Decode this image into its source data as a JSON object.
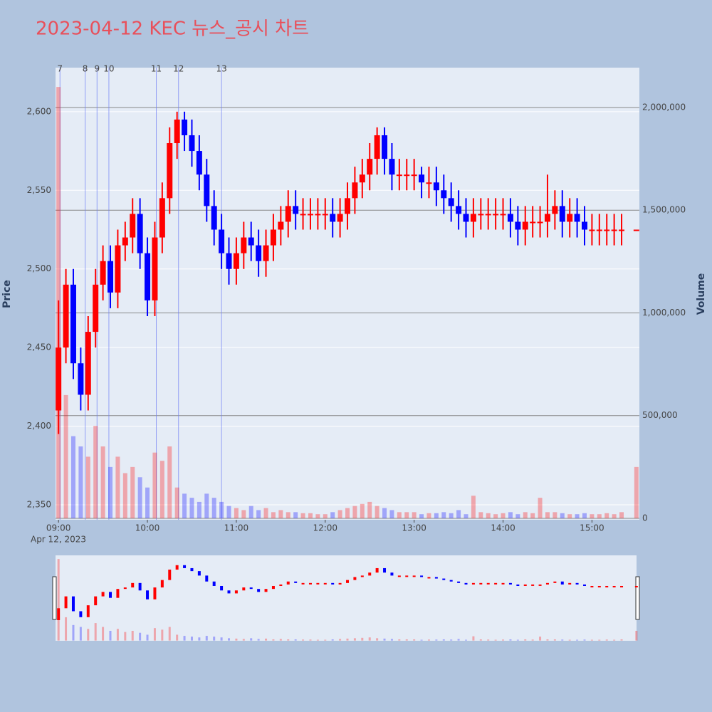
{
  "chart_data": {
    "type": "candlestick",
    "title": "2023-04-12 KEC 뉴스_공시 차트",
    "y_label": "Price",
    "y2_label": "Volume",
    "date_label": "Apr 12, 2023",
    "up_color": "#ff0000",
    "down_color": "#0000ff",
    "x": [
      "09:00",
      "09:05",
      "09:10",
      "09:15",
      "09:20",
      "09:25",
      "09:30",
      "09:35",
      "09:40",
      "09:45",
      "09:50",
      "09:55",
      "10:00",
      "10:05",
      "10:10",
      "10:15",
      "10:20",
      "10:25",
      "10:30",
      "10:35",
      "10:40",
      "10:45",
      "10:50",
      "10:55",
      "11:00",
      "11:05",
      "11:10",
      "11:15",
      "11:20",
      "11:25",
      "11:30",
      "11:35",
      "11:40",
      "11:45",
      "11:50",
      "11:55",
      "12:00",
      "12:05",
      "12:10",
      "12:15",
      "12:20",
      "12:25",
      "12:30",
      "12:35",
      "12:40",
      "12:45",
      "12:50",
      "12:55",
      "13:00",
      "13:05",
      "13:10",
      "13:15",
      "13:20",
      "13:25",
      "13:30",
      "13:35",
      "13:40",
      "13:45",
      "13:50",
      "13:55",
      "14:00",
      "14:05",
      "14:10",
      "14:15",
      "14:20",
      "14:25",
      "14:30",
      "14:35",
      "14:40",
      "14:45",
      "14:50",
      "14:55",
      "15:00",
      "15:05",
      "15:10",
      "15:15",
      "15:20",
      "15:30"
    ],
    "open": [
      2410,
      2450,
      2490,
      2440,
      2420,
      2460,
      2490,
      2505,
      2485,
      2515,
      2520,
      2535,
      2510,
      2480,
      2520,
      2545,
      2580,
      2595,
      2585,
      2575,
      2560,
      2540,
      2525,
      2510,
      2500,
      2510,
      2520,
      2515,
      2505,
      2515,
      2525,
      2530,
      2540,
      2535,
      2535,
      2535,
      2535,
      2535,
      2530,
      2535,
      2545,
      2555,
      2560,
      2570,
      2585,
      2570,
      2560,
      2560,
      2560,
      2560,
      2555,
      2555,
      2550,
      2545,
      2540,
      2535,
      2530,
      2535,
      2535,
      2535,
      2535,
      2535,
      2530,
      2525,
      2530,
      2530,
      2530,
      2535,
      2540,
      2530,
      2535,
      2530,
      2525,
      2525,
      2525,
      2525,
      2525,
      2525
    ],
    "high": [
      2480,
      2500,
      2500,
      2450,
      2470,
      2500,
      2515,
      2515,
      2525,
      2530,
      2545,
      2545,
      2520,
      2530,
      2555,
      2590,
      2600,
      2600,
      2595,
      2585,
      2570,
      2550,
      2535,
      2520,
      2520,
      2530,
      2530,
      2525,
      2525,
      2535,
      2540,
      2550,
      2550,
      2545,
      2545,
      2545,
      2545,
      2545,
      2545,
      2555,
      2565,
      2570,
      2580,
      2590,
      2590,
      2580,
      2570,
      2570,
      2570,
      2565,
      2565,
      2565,
      2560,
      2555,
      2550,
      2545,
      2545,
      2545,
      2545,
      2545,
      2545,
      2545,
      2540,
      2540,
      2540,
      2540,
      2560,
      2550,
      2550,
      2545,
      2545,
      2540,
      2535,
      2535,
      2535,
      2535,
      2535,
      2525
    ],
    "low": [
      2395,
      2440,
      2430,
      2410,
      2410,
      2450,
      2480,
      2475,
      2475,
      2505,
      2510,
      2500,
      2470,
      2470,
      2510,
      2535,
      2570,
      2575,
      2565,
      2550,
      2530,
      2515,
      2500,
      2490,
      2490,
      2500,
      2505,
      2495,
      2495,
      2505,
      2515,
      2520,
      2525,
      2525,
      2525,
      2525,
      2525,
      2520,
      2520,
      2525,
      2535,
      2545,
      2550,
      2560,
      2560,
      2550,
      2550,
      2550,
      2550,
      2545,
      2545,
      2540,
      2535,
      2530,
      2525,
      2520,
      2520,
      2525,
      2525,
      2525,
      2525,
      2520,
      2515,
      2515,
      2520,
      2520,
      2520,
      2525,
      2520,
      2520,
      2520,
      2515,
      2515,
      2515,
      2515,
      2515,
      2515,
      2525
    ],
    "close": [
      2450,
      2490,
      2440,
      2420,
      2460,
      2490,
      2505,
      2485,
      2515,
      2520,
      2535,
      2510,
      2480,
      2520,
      2545,
      2580,
      2595,
      2585,
      2575,
      2560,
      2540,
      2525,
      2510,
      2500,
      2510,
      2520,
      2515,
      2505,
      2515,
      2525,
      2530,
      2540,
      2535,
      2535,
      2535,
      2535,
      2535,
      2530,
      2535,
      2545,
      2555,
      2560,
      2570,
      2585,
      2570,
      2560,
      2560,
      2560,
      2560,
      2555,
      2555,
      2550,
      2545,
      2540,
      2535,
      2530,
      2535,
      2535,
      2535,
      2535,
      2535,
      2530,
      2525,
      2530,
      2530,
      2530,
      2535,
      2540,
      2530,
      2535,
      2530,
      2525,
      2525,
      2525,
      2525,
      2525,
      2525,
      2525
    ],
    "volume": [
      2100000,
      600000,
      400000,
      350000,
      300000,
      450000,
      350000,
      250000,
      300000,
      220000,
      250000,
      200000,
      150000,
      320000,
      280000,
      350000,
      150000,
      120000,
      100000,
      80000,
      120000,
      100000,
      80000,
      60000,
      50000,
      40000,
      60000,
      40000,
      50000,
      30000,
      40000,
      30000,
      30000,
      25000,
      25000,
      20000,
      20000,
      30000,
      40000,
      50000,
      60000,
      70000,
      80000,
      60000,
      50000,
      40000,
      30000,
      30000,
      30000,
      20000,
      25000,
      25000,
      30000,
      25000,
      40000,
      20000,
      110000,
      30000,
      25000,
      20000,
      25000,
      30000,
      20000,
      30000,
      25000,
      100000,
      30000,
      30000,
      25000,
      20000,
      20000,
      25000,
      20000,
      20000,
      25000,
      20000,
      30000,
      250000
    ],
    "xlim": [
      "08:58",
      "15:32"
    ],
    "xticks": [
      "09:00",
      "10:00",
      "11:00",
      "12:00",
      "13:00",
      "14:00",
      "15:00"
    ],
    "ylim": [
      2340.5,
      2628
    ],
    "yticks": [
      {
        "value": 2350,
        "label": "2,350"
      },
      {
        "value": 2400,
        "label": "2,400"
      },
      {
        "value": 2450,
        "label": "2,450"
      },
      {
        "value": 2500,
        "label": "2,500"
      },
      {
        "value": 2550,
        "label": "2,550"
      },
      {
        "value": 2600,
        "label": "2,600"
      }
    ],
    "y2lim": [
      -7000,
      2194000
    ],
    "y2ticks": [
      0,
      {
        "value": 500000,
        "label": "500,000"
      },
      {
        "value": 1000000,
        "label": "1,000,000"
      },
      {
        "value": 1500000,
        "label": "1,500,000"
      },
      {
        "value": 2000000,
        "label": "2,000,000"
      }
    ],
    "annotations": [
      {
        "x": "09:01",
        "label": "7"
      },
      {
        "x": "09:18",
        "label": "8"
      },
      {
        "x": "09:26",
        "label": "9"
      },
      {
        "x": "09:34",
        "label": "10"
      },
      {
        "x": "10:06",
        "label": "11"
      },
      {
        "x": "10:21",
        "label": "12"
      },
      {
        "x": "10:50",
        "label": "13"
      }
    ]
  }
}
